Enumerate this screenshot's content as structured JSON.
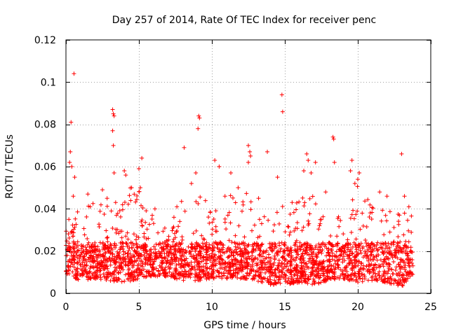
{
  "chart_data": {
    "type": "scatter",
    "title": "Day 257 of 2014, Rate Of TEC Index for receiver penc",
    "xlabel": "GPS time / hours",
    "ylabel": "ROTI / TECUs",
    "xlim": [
      0,
      25
    ],
    "ylim": [
      0,
      0.12
    ],
    "xticks": [
      0,
      5,
      10,
      15,
      20,
      25
    ],
    "xtick_labels": [
      "0",
      "5",
      "10",
      "15",
      "20",
      "25"
    ],
    "yticks": [
      0,
      0.02,
      0.04,
      0.06,
      0.08,
      0.1,
      0.12
    ],
    "ytick_labels": [
      "0",
      "0.02",
      "0.04",
      "0.06",
      "0.08",
      "0.1",
      "0.12"
    ],
    "grid": true,
    "marker": "+",
    "color": "#ff0000",
    "series": [
      {
        "name": "ROTI",
        "points": [
          [
            0.55,
            0.104
          ],
          [
            0.35,
            0.081
          ],
          [
            0.3,
            0.067
          ],
          [
            0.25,
            0.062
          ],
          [
            0.4,
            0.06
          ],
          [
            0.6,
            0.055
          ],
          [
            0.5,
            0.046
          ],
          [
            0.2,
            0.035
          ],
          [
            3.2,
            0.087
          ],
          [
            3.25,
            0.085
          ],
          [
            3.3,
            0.084
          ],
          [
            3.2,
            0.077
          ],
          [
            3.25,
            0.07
          ],
          [
            3.3,
            0.057
          ],
          [
            4.0,
            0.058
          ],
          [
            4.1,
            0.056
          ],
          [
            5.0,
            0.059
          ],
          [
            5.2,
            0.064
          ],
          [
            4.5,
            0.05
          ],
          [
            5.1,
            0.05
          ],
          [
            8.1,
            0.069
          ],
          [
            9.1,
            0.084
          ],
          [
            9.15,
            0.083
          ],
          [
            9.05,
            0.078
          ],
          [
            8.9,
            0.057
          ],
          [
            8.6,
            0.052
          ],
          [
            10.2,
            0.063
          ],
          [
            10.5,
            0.06
          ],
          [
            11.3,
            0.057
          ],
          [
            12.5,
            0.07
          ],
          [
            12.6,
            0.067
          ],
          [
            12.65,
            0.065
          ],
          [
            12.5,
            0.062
          ],
          [
            13.8,
            0.067
          ],
          [
            14.8,
            0.094
          ],
          [
            14.85,
            0.086
          ],
          [
            14.5,
            0.055
          ],
          [
            16.5,
            0.066
          ],
          [
            16.6,
            0.063
          ],
          [
            17.1,
            0.062
          ],
          [
            16.3,
            0.058
          ],
          [
            16.8,
            0.057
          ],
          [
            18.3,
            0.074
          ],
          [
            18.35,
            0.073
          ],
          [
            18.4,
            0.062
          ],
          [
            19.6,
            0.063
          ],
          [
            19.5,
            0.058
          ],
          [
            20.1,
            0.057
          ],
          [
            20.0,
            0.054
          ],
          [
            19.8,
            0.052
          ],
          [
            23.0,
            0.066
          ],
          [
            23.2,
            0.046
          ],
          [
            23.5,
            0.041
          ],
          [
            21.5,
            0.048
          ],
          [
            22.0,
            0.046
          ],
          [
            6.1,
            0.04
          ],
          [
            7.4,
            0.036
          ],
          [
            1.5,
            0.047
          ],
          [
            2.5,
            0.049
          ],
          [
            11.8,
            0.05
          ],
          [
            13.2,
            0.045
          ],
          [
            15.5,
            0.043
          ],
          [
            17.8,
            0.048
          ],
          [
            10.9,
            0.046
          ],
          [
            7.8,
            0.034
          ]
        ]
      }
    ],
    "envelope": {
      "x": [
        0,
        1,
        2,
        3,
        4,
        5,
        6,
        7,
        8,
        9,
        10,
        11,
        12,
        13,
        14,
        15,
        16,
        17,
        18,
        19,
        20,
        21,
        22,
        23,
        23.8
      ],
      "upper": [
        0.034,
        0.04,
        0.043,
        0.047,
        0.052,
        0.05,
        0.036,
        0.032,
        0.047,
        0.05,
        0.041,
        0.046,
        0.052,
        0.045,
        0.035,
        0.043,
        0.045,
        0.05,
        0.032,
        0.042,
        0.052,
        0.043,
        0.039,
        0.041,
        0.037
      ],
      "lower": [
        0.009,
        0.006,
        0.007,
        0.006,
        0.005,
        0.007,
        0.008,
        0.008,
        0.006,
        0.006,
        0.007,
        0.007,
        0.007,
        0.006,
        0.004,
        0.004,
        0.005,
        0.004,
        0.006,
        0.007,
        0.005,
        0.006,
        0.005,
        0.003,
        0.009
      ]
    }
  }
}
